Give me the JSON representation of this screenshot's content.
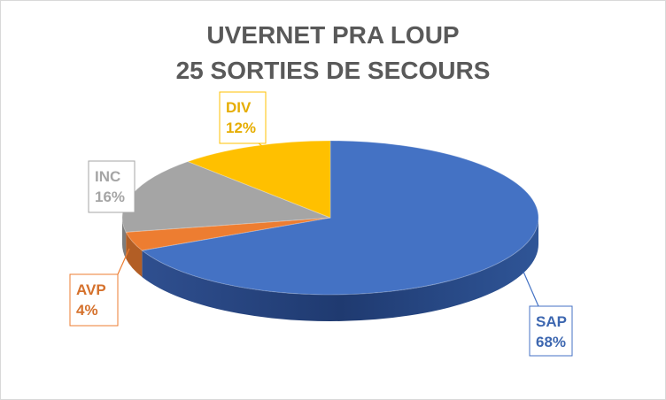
{
  "chart_data": {
    "type": "pie",
    "title_line1": "UVERNET PRA LOUP",
    "title_line2": "25 SORTIES DE SECOURS",
    "slices": [
      {
        "name": "SAP",
        "value": 68,
        "label": "68%",
        "color": "#4472c4"
      },
      {
        "name": "AVP",
        "value": 4,
        "label": "4%",
        "color": "#ed7d31"
      },
      {
        "name": "INC",
        "value": 16,
        "label": "16%",
        "color": "#a5a5a5"
      },
      {
        "name": "DIV",
        "value": 12,
        "label": "12%",
        "color": "#ffc000"
      }
    ],
    "legend": "none",
    "style": "3d-pie"
  }
}
